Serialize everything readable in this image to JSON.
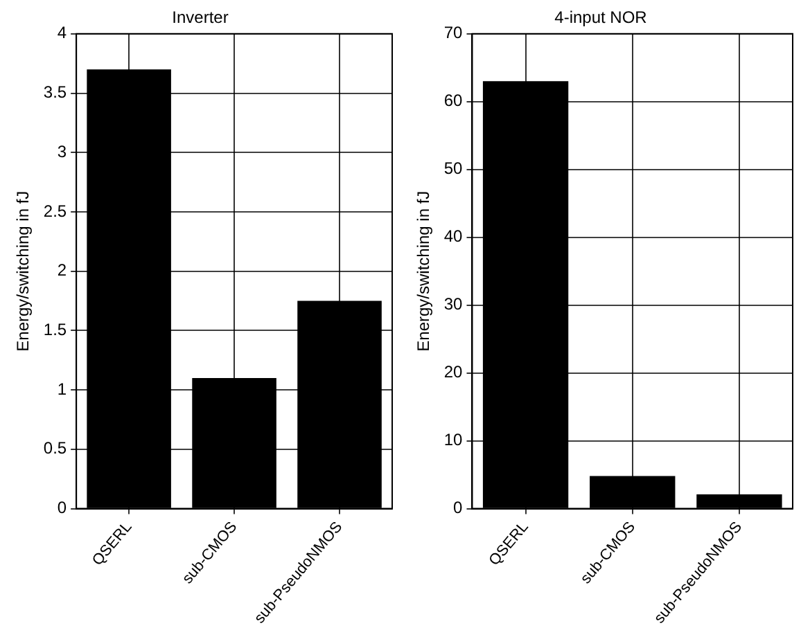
{
  "chart_data": [
    {
      "type": "bar",
      "title": "Inverter",
      "ylabel": "Energy/switching in fJ",
      "categories": [
        "QSERL",
        "sub-CMOS",
        "sub-PseudoNMOS"
      ],
      "values": [
        3.7,
        1.1,
        1.75
      ],
      "color": "#000000",
      "ylim": [
        0,
        4
      ],
      "yticks": [
        0,
        0.5,
        1,
        1.5,
        2,
        2.5,
        3,
        3.5,
        4
      ],
      "grid": true
    },
    {
      "type": "bar",
      "title": "4-input NOR",
      "ylabel": "Energy/switching in fJ",
      "categories": [
        "QSERL",
        "sub-CMOS",
        "sub-PseudoNMOS"
      ],
      "values": [
        63,
        4.8,
        2.1
      ],
      "color": "#000000",
      "ylim": [
        0,
        70
      ],
      "yticks": [
        0,
        10,
        20,
        30,
        40,
        50,
        60,
        70
      ],
      "grid": true
    }
  ]
}
